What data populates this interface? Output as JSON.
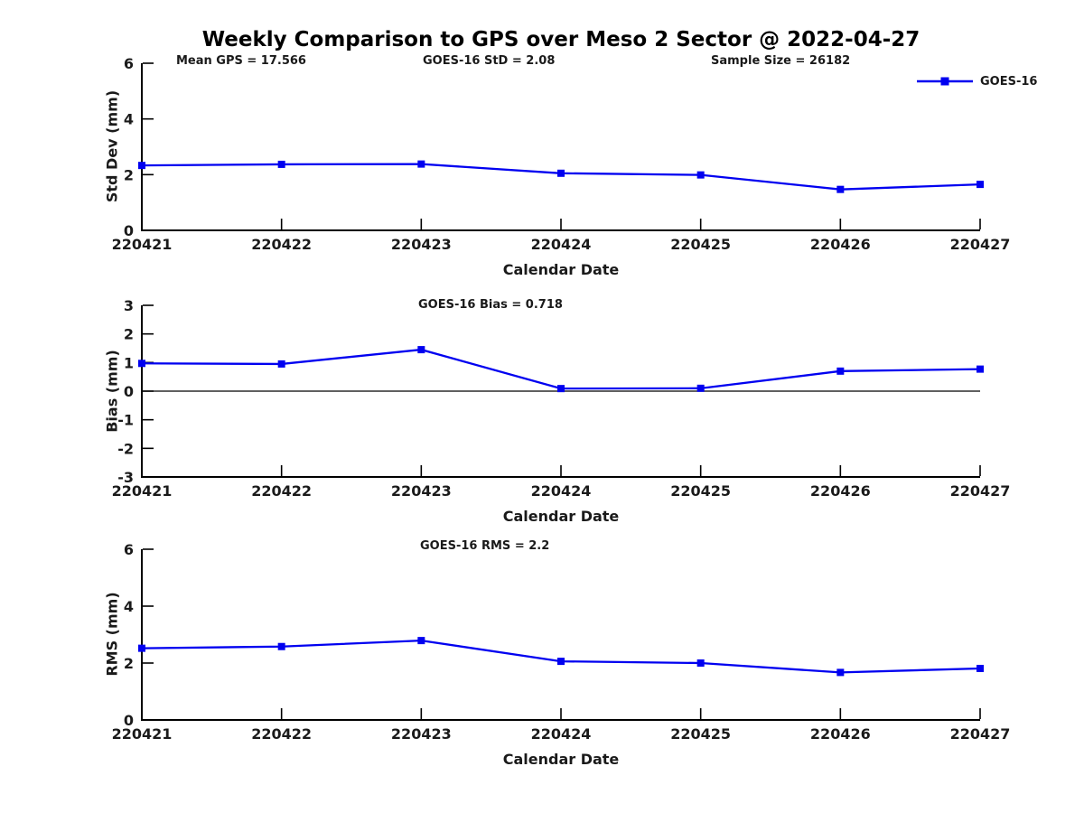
{
  "figure": {
    "title": "Weekly Comparison to GPS over Meso 2 Sector @ 2022-04-27",
    "background": "#ffffff",
    "line_color": "#0000ff",
    "axis_color": "#000000",
    "text_color": "#1a1a1a"
  },
  "annotations": {
    "mean_gps": "Mean GPS = 17.566",
    "goes16_std": "GOES-16 StD = 2.08",
    "sample_size": "Sample Size = 26182"
  },
  "legend": {
    "series_label": "GOES-16",
    "position": "top-right",
    "marker": "square"
  },
  "chart_data": [
    {
      "type": "line",
      "title": "",
      "xlabel": "Calendar Date",
      "ylabel": "Std Dev (mm)",
      "categories": [
        "220421",
        "220422",
        "220423",
        "220424",
        "220425",
        "220426",
        "220427"
      ],
      "series": [
        {
          "name": "GOES-16",
          "values": [
            2.33,
            2.37,
            2.38,
            2.05,
            1.99,
            1.47,
            1.65
          ]
        }
      ],
      "ylim": [
        0,
        6
      ],
      "yticks": [
        0,
        2,
        4,
        6
      ],
      "ytick_labels": [
        "0",
        "2",
        "4",
        "6"
      ],
      "grid": false,
      "zero_line": false
    },
    {
      "type": "line",
      "title": "GOES-16 Bias  = 0.718",
      "xlabel": "Calendar Date",
      "ylabel": "Bias (mm)",
      "categories": [
        "220421",
        "220422",
        "220423",
        "220424",
        "220425",
        "220426",
        "220427"
      ],
      "series": [
        {
          "name": "GOES-16",
          "values": [
            0.97,
            0.95,
            1.45,
            0.09,
            0.1,
            0.7,
            0.77
          ]
        }
      ],
      "ylim": [
        -3,
        3
      ],
      "yticks": [
        -3,
        -2,
        -1,
        0,
        1,
        2,
        3
      ],
      "ytick_labels": [
        "-3",
        "-2",
        "-1",
        "0",
        "1",
        "2",
        "3"
      ],
      "grid": false,
      "zero_line": true
    },
    {
      "type": "line",
      "title": "GOES-16 RMS = 2.2",
      "xlabel": "Calendar Date",
      "ylabel": "RMS (mm)",
      "categories": [
        "220421",
        "220422",
        "220423",
        "220424",
        "220425",
        "220426",
        "220427"
      ],
      "series": [
        {
          "name": "GOES-16",
          "values": [
            2.52,
            2.58,
            2.79,
            2.06,
            2.0,
            1.67,
            1.81
          ]
        }
      ],
      "ylim": [
        0,
        6
      ],
      "yticks": [
        0,
        2,
        4,
        6
      ],
      "ytick_labels": [
        "0",
        "2",
        "4",
        "6"
      ],
      "grid": false,
      "zero_line": false
    }
  ]
}
